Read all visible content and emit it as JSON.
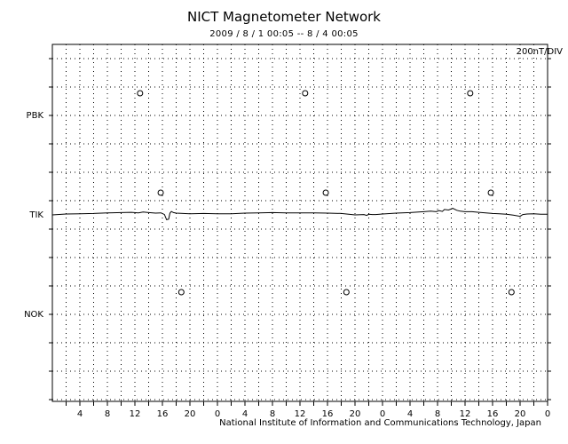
{
  "chart_data": {
    "type": "line",
    "title": "NICT Magnetometer Network",
    "subtitle": "2009 / 8 / 1   00:05 -- 8 / 4  00:05",
    "scale_label": "200nT/DIV",
    "footer": "National Institute of Information and Communications Technology, Japan",
    "x_tick_labels": [
      "4",
      "8",
      "12",
      "16",
      "20",
      "0",
      "4",
      "8",
      "12",
      "16",
      "20",
      "0",
      "4",
      "8",
      "12",
      "16",
      "20",
      "0"
    ],
    "xlim": [
      0,
      72
    ],
    "grid": true,
    "stations": [
      {
        "name": "PBK",
        "markers_hours": [
          12.75,
          36.75,
          60.75
        ]
      },
      {
        "name": "TIK",
        "markers_hours": [
          15.75,
          39.75,
          63.75
        ]
      },
      {
        "name": "NOK",
        "markers_hours": [
          18.75,
          42.75,
          66.75
        ]
      }
    ],
    "series": [
      {
        "name": "TIK",
        "unit": "nT",
        "x": [
          0,
          2,
          4,
          6,
          8,
          10,
          11.5,
          12.5,
          13.2,
          14,
          15,
          15.8,
          16.3,
          16.6,
          16.9,
          17.1,
          17.3,
          17.6,
          18,
          19,
          20,
          22,
          24,
          26,
          28,
          30,
          32,
          34,
          36,
          38,
          40,
          42,
          44,
          45.3,
          45.7,
          46,
          46.5,
          47,
          48,
          50,
          52,
          54,
          55,
          55.8,
          56.2,
          56.7,
          57,
          57.6,
          58.2,
          58.8,
          59.3,
          60,
          61,
          62,
          63,
          64,
          65,
          66,
          67,
          68,
          68.4,
          69,
          70,
          71,
          72
        ],
        "values": [
          -6,
          0,
          2,
          4,
          8,
          10,
          12,
          8,
          14,
          10,
          6,
          8,
          -4,
          -40,
          -36,
          6,
          18,
          10,
          6,
          4,
          2,
          4,
          2,
          2,
          6,
          8,
          10,
          8,
          8,
          8,
          6,
          4,
          -6,
          -4,
          -10,
          -2,
          -4,
          -4,
          0,
          6,
          10,
          16,
          20,
          16,
          24,
          18,
          32,
          28,
          40,
          26,
          20,
          16,
          16,
          12,
          8,
          4,
          2,
          -2,
          -8,
          -16,
          -4,
          0,
          2,
          -2,
          -2
        ]
      }
    ]
  }
}
